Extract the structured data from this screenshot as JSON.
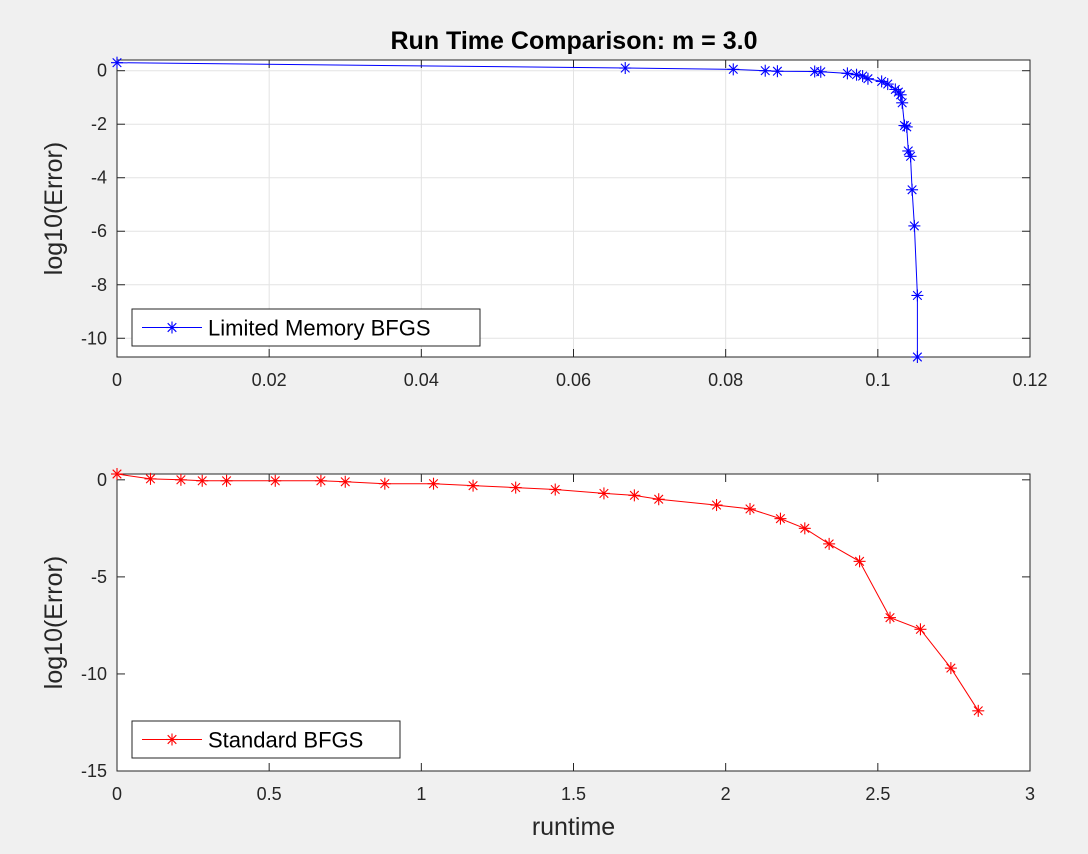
{
  "figure": {
    "title": "Run Time Comparison: m = 3.0",
    "background": "#f0f0f0"
  },
  "chart_data": [
    {
      "type": "line",
      "marker": "asterisk",
      "ylabel": "log10(Error)",
      "xlabel": "",
      "xlim": [
        0,
        0.12
      ],
      "ylim": [
        -10.7,
        0.4
      ],
      "xticks": [
        0,
        0.02,
        0.04,
        0.06,
        0.08,
        0.1,
        0.12
      ],
      "xtick_labels": [
        "0",
        "0.02",
        "0.04",
        "0.06",
        "0.08",
        "0.1",
        "0.12"
      ],
      "yticks": [
        0,
        -2,
        -4,
        -6,
        -8,
        -10
      ],
      "ytick_labels": [
        "0",
        "-2",
        "-4",
        "-6",
        "-8",
        "-10"
      ],
      "grid": true,
      "legend_position": "bottom-left",
      "series": [
        {
          "name": "Limited Memory BFGS",
          "color": "#0000ff",
          "x": [
            0,
            0.0668,
            0.081,
            0.0852,
            0.0868,
            0.0917,
            0.0925,
            0.096,
            0.0972,
            0.098,
            0.0987,
            0.1005,
            0.1013,
            0.1023,
            0.1027,
            0.103,
            0.1032,
            0.1035,
            0.1038,
            0.104,
            0.1043,
            0.1045,
            0.1048,
            0.1052
          ],
          "y": [
            0.3,
            0.1,
            0.05,
            0.0,
            -0.02,
            -0.03,
            -0.04,
            -0.1,
            -0.15,
            -0.2,
            -0.3,
            -0.4,
            -0.5,
            -0.7,
            -0.8,
            -0.9,
            -1.2,
            -2.05,
            -2.1,
            -3.0,
            -3.2,
            -4.45,
            -5.8,
            -8.4
          ]
        }
      ],
      "extra_point": {
        "x": 0.1052,
        "y": -10.7
      }
    },
    {
      "type": "line",
      "marker": "asterisk",
      "ylabel": "log10(Error)",
      "xlabel": "runtime",
      "xlim": [
        0,
        3
      ],
      "ylim": [
        -15,
        0.3
      ],
      "xticks": [
        0,
        0.5,
        1,
        1.5,
        2,
        2.5,
        3
      ],
      "xtick_labels": [
        "0",
        "0.5",
        "1",
        "1.5",
        "2",
        "2.5",
        "3"
      ],
      "yticks": [
        0,
        -5,
        -10,
        -15
      ],
      "ytick_labels": [
        "0",
        "-5",
        "-10",
        "-15"
      ],
      "grid": false,
      "legend_position": "bottom-left",
      "series": [
        {
          "name": "Standard BFGS",
          "color": "#ff0000",
          "x": [
            0,
            0.11,
            0.21,
            0.28,
            0.36,
            0.52,
            0.67,
            0.75,
            0.88,
            1.04,
            1.17,
            1.31,
            1.44,
            1.6,
            1.7,
            1.78,
            1.97,
            2.08,
            2.18,
            2.26,
            2.34,
            2.44,
            2.54,
            2.64,
            2.74,
            2.83
          ],
          "y": [
            0.3,
            0.05,
            0.0,
            -0.05,
            -0.05,
            -0.05,
            -0.05,
            -0.1,
            -0.2,
            -0.2,
            -0.3,
            -0.4,
            -0.5,
            -0.7,
            -0.8,
            -1.0,
            -1.3,
            -1.5,
            -2.0,
            -2.5,
            -3.3,
            -4.2,
            -7.1,
            -7.7,
            -9.7,
            -11.9
          ]
        }
      ]
    }
  ]
}
